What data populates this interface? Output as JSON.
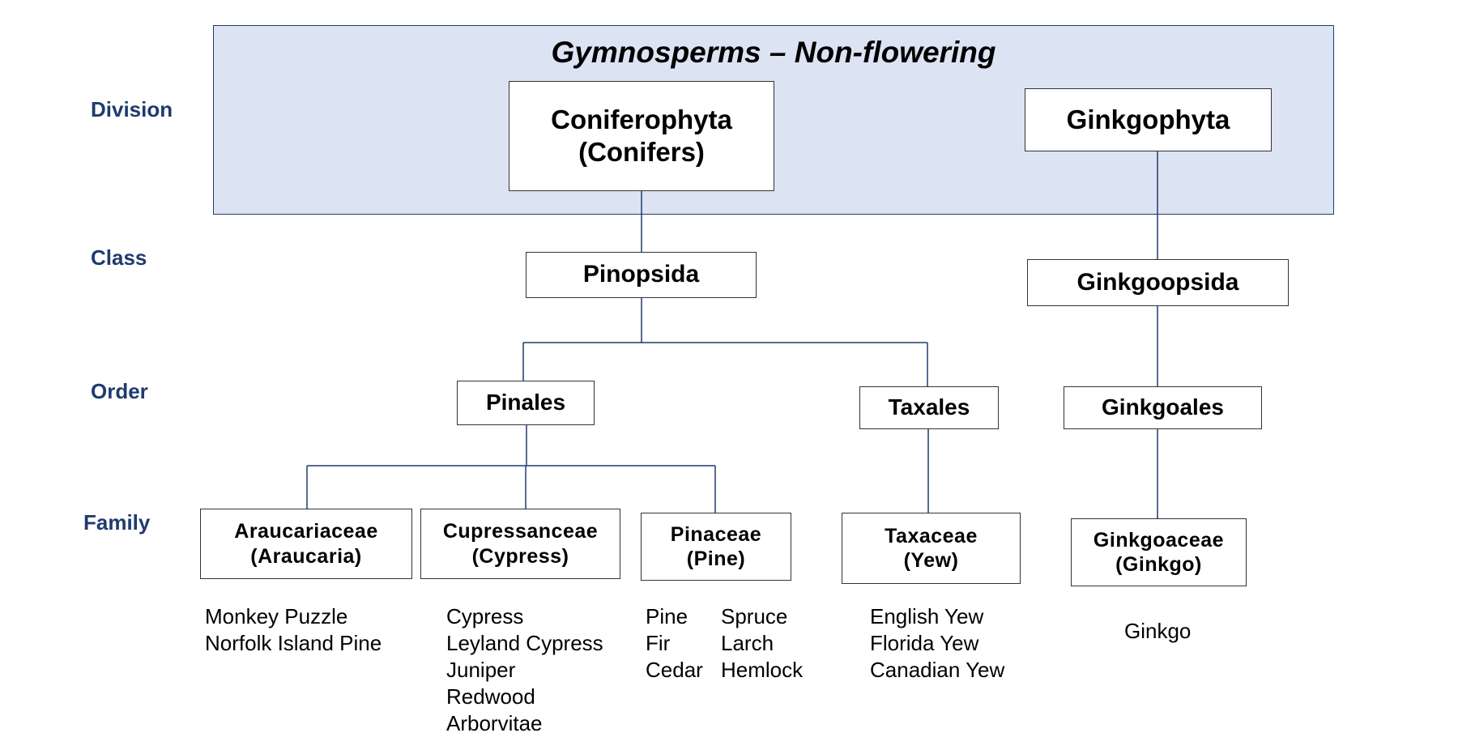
{
  "header": {
    "title": "Gymnosperms – Non-flowering"
  },
  "ranks": {
    "division": "Division",
    "class": "Class",
    "order": "Order",
    "family": "Family"
  },
  "divisions": {
    "coniferophyta": {
      "line1": "Coniferophyta",
      "line2": "(Conifers)"
    },
    "ginkgophyta": {
      "line1": "Ginkgophyta"
    }
  },
  "classes": {
    "pinopsida": "Pinopsida",
    "ginkgoopsida": "Ginkgoopsida"
  },
  "orders": {
    "pinales": "Pinales",
    "taxales": "Taxales",
    "ginkgoales": "Ginkgoales"
  },
  "families": {
    "araucariaceae": {
      "line1": "Araucariaceae",
      "line2": "(Araucaria)"
    },
    "cupressanceae": {
      "line1": "Cupressanceae",
      "line2": "(Cypress)"
    },
    "pinaceae": {
      "line1": "Pinaceae",
      "line2": "(Pine)"
    },
    "taxaceae": {
      "line1": "Taxaceae",
      "line2": "(Yew)"
    },
    "ginkgoaceae": {
      "line1": "Ginkgoaceae",
      "line2": "(Ginkgo)"
    }
  },
  "examples": {
    "araucaria": [
      "Monkey Puzzle",
      "Norfolk Island Pine"
    ],
    "cypress": [
      "Cypress",
      "Leyland Cypress",
      "Juniper",
      "Redwood",
      "Arborvitae"
    ],
    "pine_col1": [
      "Pine",
      "Fir",
      "Cedar"
    ],
    "pine_col2": [
      "Spruce",
      "Larch",
      "Hemlock"
    ],
    "yew": [
      "English Yew",
      "Florida Yew",
      "Canadian Yew"
    ],
    "ginkgo": [
      "Ginkgo"
    ]
  },
  "colors": {
    "band_fill": "#dce4f3",
    "band_border": "#1f3b6e",
    "rank_label": "#1f3b6e",
    "connector": "#1f3b6e"
  }
}
